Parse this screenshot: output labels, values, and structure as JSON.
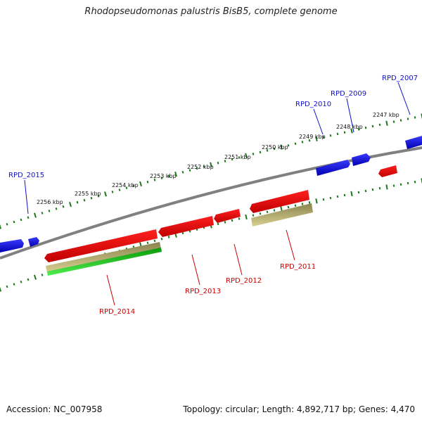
{
  "title": "Rhodopseudomonas palustris BisB5, complete genome",
  "footer": {
    "accession": "Accession: NC_007958",
    "topology": "Topology: circular; Length: 4,892,717 bp; Genes: 4,470"
  },
  "colors": {
    "forward_gene": "#0a0adc",
    "reverse_gene": "#e60000",
    "cds_khaki": "#b8b070",
    "cds_green": "#22cc22",
    "backbone": "#808080",
    "tick": "#1a7a1a",
    "forward_label": "#1010cc",
    "reverse_label": "#cc0000"
  },
  "kbp_labels": [
    "2247 kbp",
    "2248 kbp",
    "2249 kbp",
    "2250 kbp",
    "2251 kbp",
    "2252 kbp",
    "2253 kbp",
    "2254 kbp",
    "2255 kbp",
    "2256 kbp"
  ],
  "genes": {
    "forward": [
      "RPD_2007",
      "RPD_2009",
      "RPD_2010",
      "RPD_2015"
    ],
    "reverse": [
      "RPD_2011",
      "RPD_2012",
      "RPD_2013",
      "RPD_2014"
    ]
  }
}
